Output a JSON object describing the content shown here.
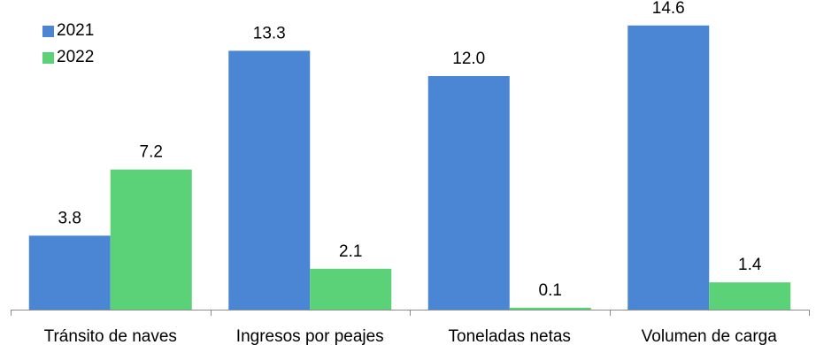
{
  "chart_data": {
    "type": "bar",
    "categories": [
      "Tránsito de naves",
      "Ingresos por peajes",
      "Toneladas netas",
      "Volumen de carga"
    ],
    "series": [
      {
        "name": "2021",
        "color": "#4a86d4",
        "values": [
          3.8,
          13.3,
          12.0,
          14.6
        ],
        "labels": [
          "3.8",
          "13.3",
          "12.0",
          "14.6"
        ]
      },
      {
        "name": "2022",
        "color": "#5cd278",
        "values": [
          7.2,
          2.1,
          0.1,
          1.4
        ],
        "labels": [
          "7.2",
          "2.1",
          "0.1",
          "1.4"
        ]
      }
    ],
    "title": "",
    "xlabel": "",
    "ylabel": "",
    "ylim": [
      0,
      15
    ],
    "grid": false,
    "legend_position": "top-left"
  }
}
